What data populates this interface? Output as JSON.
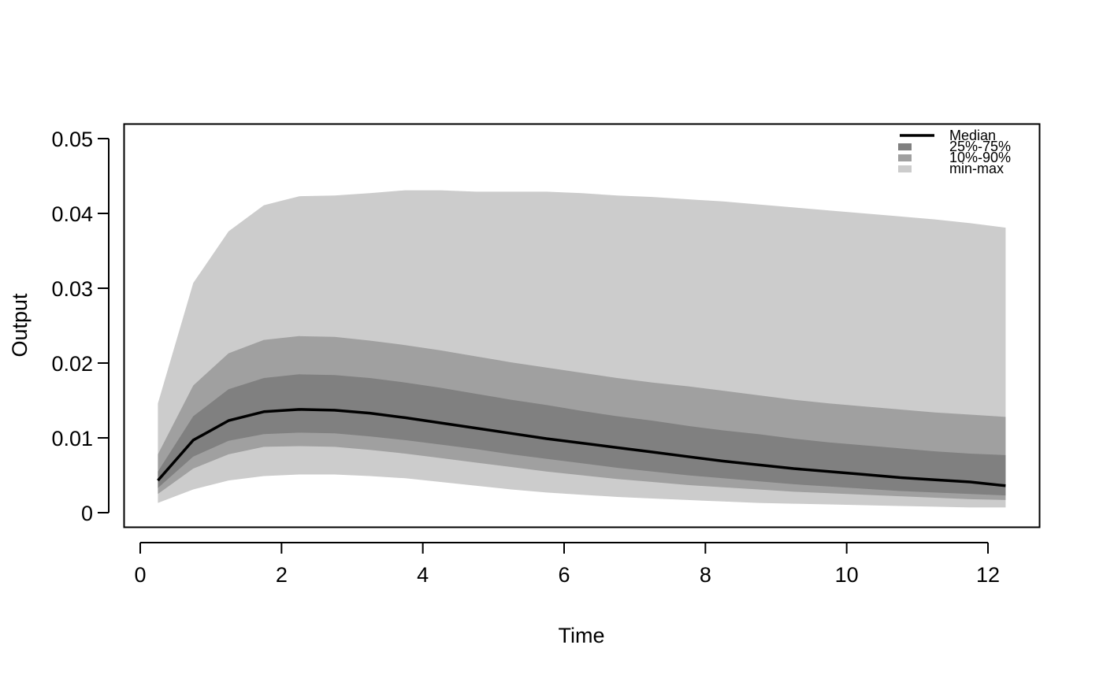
{
  "chart_data": {
    "type": "area",
    "title": "",
    "xlabel": "Time",
    "ylabel": "Output",
    "xlim": [
      0,
      12.25
    ],
    "ylim": [
      0,
      0.05
    ],
    "x_ticks": [
      0,
      2,
      4,
      6,
      8,
      10,
      12
    ],
    "y_ticks": [
      0,
      0.01,
      0.02,
      0.03,
      0.04,
      0.05
    ],
    "y_tick_labels": [
      "0",
      "0.01",
      "0.02",
      "0.03",
      "0.04",
      "0.05"
    ],
    "grid": false,
    "legend_position": "top-right",
    "x": [
      0.25,
      0.75,
      1.25,
      1.75,
      2.25,
      2.75,
      3.25,
      3.75,
      4.25,
      4.75,
      5.25,
      5.75,
      6.25,
      6.75,
      7.25,
      7.75,
      8.25,
      8.75,
      9.25,
      9.75,
      10.25,
      10.75,
      11.25,
      11.75,
      12.25
    ],
    "series": [
      {
        "name": "min-max",
        "type": "band",
        "color": "#cccccc",
        "lower": [
          0.0013,
          0.0031,
          0.0043,
          0.0049,
          0.0051,
          0.0051,
          0.0049,
          0.0046,
          0.0041,
          0.0036,
          0.0031,
          0.0027,
          0.0024,
          0.0021,
          0.0019,
          0.0017,
          0.0015,
          0.0013,
          0.0012,
          0.0011,
          0.001,
          0.0009,
          0.0008,
          0.0007,
          0.0007
        ],
        "upper": [
          0.0146,
          0.0307,
          0.0376,
          0.0411,
          0.0423,
          0.0424,
          0.0427,
          0.0431,
          0.0431,
          0.0429,
          0.0429,
          0.0429,
          0.0427,
          0.0424,
          0.0422,
          0.0419,
          0.0416,
          0.0412,
          0.0408,
          0.0404,
          0.04,
          0.0396,
          0.0392,
          0.0387,
          0.0381
        ]
      },
      {
        "name": "10%-90%",
        "type": "band",
        "color": "#a0a0a0",
        "lower": [
          0.0025,
          0.0059,
          0.0078,
          0.0088,
          0.0089,
          0.0088,
          0.0084,
          0.0079,
          0.0073,
          0.0067,
          0.0061,
          0.0055,
          0.005,
          0.0045,
          0.0041,
          0.0037,
          0.0034,
          0.0031,
          0.0028,
          0.0026,
          0.0024,
          0.0022,
          0.002,
          0.0018,
          0.0017
        ],
        "upper": [
          0.0078,
          0.017,
          0.0213,
          0.0231,
          0.0236,
          0.0235,
          0.023,
          0.0224,
          0.0217,
          0.0209,
          0.0201,
          0.0194,
          0.0187,
          0.018,
          0.0174,
          0.0169,
          0.0163,
          0.0157,
          0.0151,
          0.0146,
          0.0142,
          0.0138,
          0.0134,
          0.0131,
          0.0128
        ]
      },
      {
        "name": "25%-75%",
        "type": "band",
        "color": "#808080",
        "lower": [
          0.0033,
          0.0075,
          0.0096,
          0.0105,
          0.0107,
          0.0106,
          0.0102,
          0.0097,
          0.0091,
          0.0085,
          0.0078,
          0.0072,
          0.0066,
          0.006,
          0.0055,
          0.005,
          0.0046,
          0.0042,
          0.0038,
          0.0035,
          0.0032,
          0.0029,
          0.0027,
          0.0025,
          0.0023
        ],
        "upper": [
          0.0055,
          0.0129,
          0.0165,
          0.018,
          0.0185,
          0.0184,
          0.018,
          0.0174,
          0.0167,
          0.0159,
          0.0151,
          0.0144,
          0.0136,
          0.0129,
          0.0123,
          0.0116,
          0.011,
          0.0105,
          0.0099,
          0.0094,
          0.009,
          0.0086,
          0.0082,
          0.0079,
          0.0077
        ]
      },
      {
        "name": "Median",
        "type": "line",
        "color": "#000000",
        "values": [
          0.0043,
          0.0097,
          0.0123,
          0.0135,
          0.0138,
          0.0137,
          0.0133,
          0.0127,
          0.012,
          0.0113,
          0.0106,
          0.0099,
          0.0093,
          0.0087,
          0.0081,
          0.0075,
          0.0069,
          0.0064,
          0.0059,
          0.0055,
          0.0051,
          0.0047,
          0.0044,
          0.0041,
          0.0036
        ]
      }
    ],
    "legend": [
      {
        "label": "Median",
        "kind": "line",
        "color": "#000000"
      },
      {
        "label": "25%-75%",
        "kind": "box",
        "color": "#808080"
      },
      {
        "label": "10%-90%",
        "kind": "box",
        "color": "#a0a0a0"
      },
      {
        "label": "min-max",
        "kind": "box",
        "color": "#cccccc"
      }
    ]
  }
}
